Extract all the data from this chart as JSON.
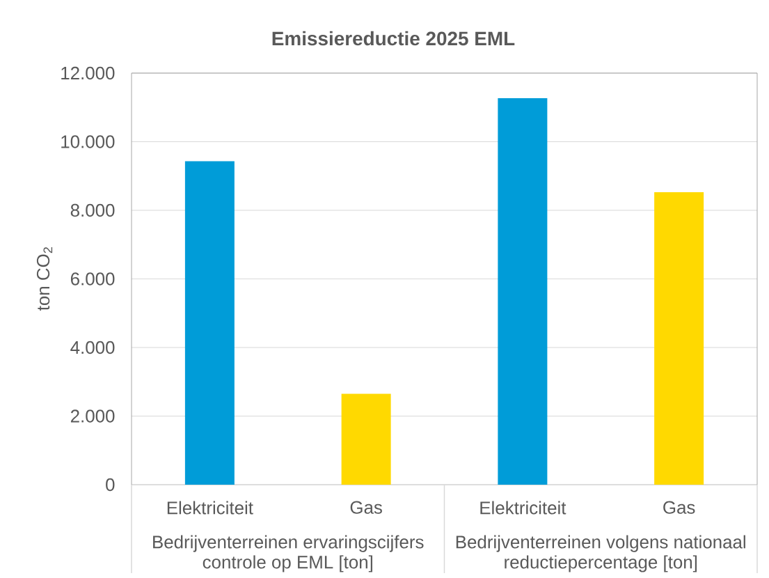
{
  "chart_data": {
    "type": "bar",
    "title": "Emissiereductie 2025 EML",
    "ylabel": "ton CO$_{2}$",
    "categories": [
      "Elektriciteit",
      "Gas",
      "Elektriciteit",
      "Gas"
    ],
    "values": [
      9430,
      2650,
      11270,
      8530
    ],
    "colors": [
      "#009cd8",
      "#ffd900",
      "#009cd8",
      "#ffd900"
    ],
    "ylim": [
      0,
      12000
    ],
    "yticks": [
      0,
      {
        "value": 2000,
        "label": "2.000"
      },
      {
        "value": 4000,
        "label": "4.000"
      },
      {
        "value": 6000,
        "label": "6.000"
      },
      {
        "value": 8000,
        "label": "8.000"
      },
      {
        "value": 10000,
        "label": "10.000"
      },
      {
        "value": 12000,
        "label": "12.000"
      }
    ],
    "grid": "y",
    "annotations": [
      "Bedrijventerreinen ervaringscijfers controle op EML [ton]",
      "Bedrijventerreinen volgens nationaal reductiepercentage [ton]"
    ]
  }
}
